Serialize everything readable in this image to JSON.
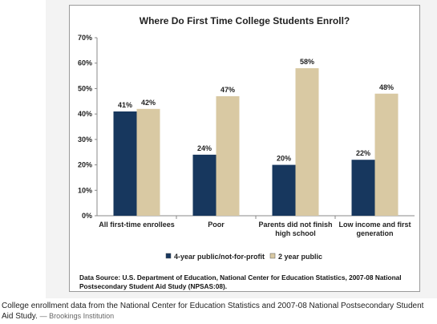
{
  "chart_data": {
    "type": "bar",
    "title": "Where Do First Time College Students Enroll?",
    "categories": [
      [
        "All first-time enrollees"
      ],
      [
        "Poor"
      ],
      [
        "Parents did not finish",
        "high school"
      ],
      [
        "Low income and first",
        "generation"
      ]
    ],
    "series": [
      {
        "name": "4-year public/not-for-profit",
        "values": [
          41,
          24,
          20,
          22
        ],
        "labels": [
          "41%",
          "24%",
          "20%",
          "22%"
        ],
        "color": "#17375e"
      },
      {
        "name": "2 year public",
        "values": [
          42,
          47,
          58,
          48
        ],
        "labels": [
          "42%",
          "47%",
          "58%",
          "48%"
        ],
        "color": "#d9c9a3"
      }
    ],
    "yticks": [
      "0%",
      "10%",
      "20%",
      "30%",
      "40%",
      "50%",
      "60%",
      "70%"
    ],
    "ylim": [
      0,
      70
    ],
    "legend_position": "bottom",
    "grid": false
  },
  "source_text": "Data Source: U.S. Department of Education, National Center for Education Statistics, 2007-08 National Postsecondary Student Aid Study (NPSAS:08).",
  "caption": {
    "text": "College enrollment data from the National Center for Education Statistics and 2007-08 National Postsecondary Student Aid Study.",
    "attribution": "— Brookings Institution"
  }
}
